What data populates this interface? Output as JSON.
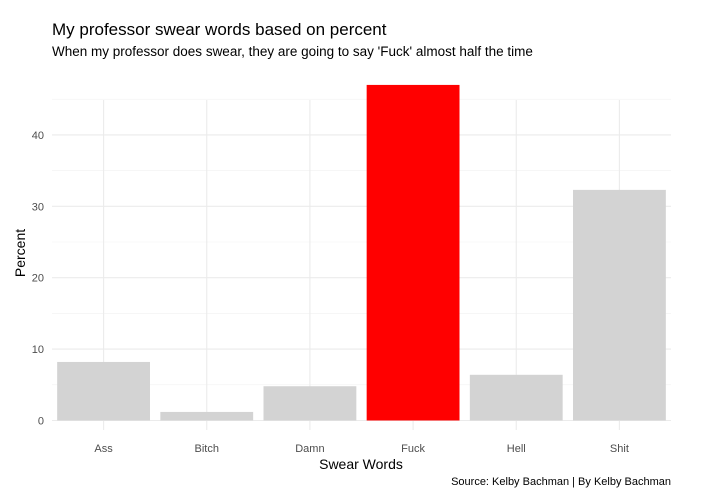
{
  "chart_data": {
    "type": "bar",
    "title": "My professor swear words based on percent",
    "subtitle": "When my professor does swear, they are going to say 'Fuck' almost half the time",
    "xlabel": "Swear Words",
    "ylabel": "Percent",
    "caption": "Source: Kelby Bachman | By Kelby Bachman",
    "categories": [
      "Ass",
      "Bitch",
      "Damn",
      "Fuck",
      "Hell",
      "Shit"
    ],
    "values": [
      8.2,
      1.2,
      4.8,
      47.0,
      6.4,
      32.3
    ],
    "bar_colors": [
      "#d3d3d3",
      "#d3d3d3",
      "#d3d3d3",
      "#ff0000",
      "#d3d3d3",
      "#d3d3d3"
    ],
    "yticks": [
      0,
      10,
      20,
      30,
      40
    ],
    "ylim": [
      0,
      49.5
    ],
    "grid": true,
    "legend": "none"
  }
}
